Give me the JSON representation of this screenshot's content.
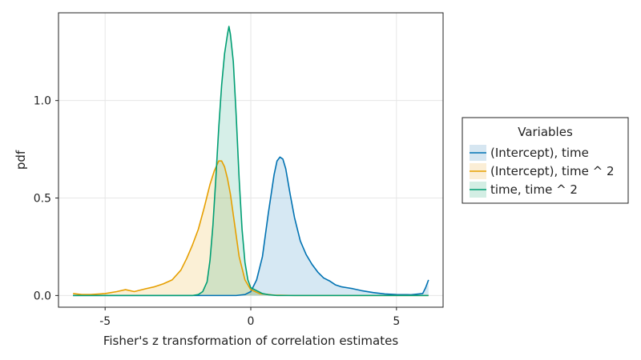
{
  "chart_data": {
    "type": "area",
    "title": "",
    "xlabel": "Fisher's z transformation of correlation estimates",
    "ylabel": "pdf",
    "xlim": [
      -6.6,
      6.6
    ],
    "ylim": [
      -0.06,
      1.45
    ],
    "x_ticks": [
      -5,
      0,
      5
    ],
    "x_tick_labels": [
      "-5",
      "0",
      "5"
    ],
    "y_ticks": [
      0.0,
      0.5,
      1.0
    ],
    "y_tick_labels": [
      "0.0",
      "0.5",
      "1.0"
    ],
    "grid": true,
    "legend": {
      "title": "Variables",
      "placement": "right"
    },
    "series": [
      {
        "name": "(Intercept), time",
        "color": "#0072b2",
        "fill": "#d6e6f1",
        "x": [
          -6.1,
          -2.0,
          -0.5,
          -0.2,
          0.0,
          0.2,
          0.4,
          0.6,
          0.8,
          0.9,
          1.0,
          1.1,
          1.2,
          1.35,
          1.5,
          1.7,
          1.9,
          2.1,
          2.3,
          2.5,
          2.7,
          2.9,
          3.1,
          3.3,
          3.5,
          3.8,
          4.2,
          4.6,
          5.0,
          5.5,
          5.9,
          6.0,
          6.1
        ],
        "y": [
          0.0,
          0.0,
          0.0,
          0.005,
          0.02,
          0.08,
          0.2,
          0.42,
          0.62,
          0.69,
          0.71,
          0.7,
          0.65,
          0.52,
          0.4,
          0.28,
          0.21,
          0.16,
          0.12,
          0.09,
          0.075,
          0.055,
          0.045,
          0.04,
          0.035,
          0.025,
          0.015,
          0.008,
          0.005,
          0.004,
          0.01,
          0.04,
          0.08
        ]
      },
      {
        "name": "(Intercept), time ^ 2",
        "color": "#e69f00",
        "fill": "#fbeed6",
        "x": [
          -6.1,
          -5.8,
          -5.5,
          -5.0,
          -4.6,
          -4.3,
          -4.0,
          -3.6,
          -3.3,
          -3.0,
          -2.7,
          -2.4,
          -2.2,
          -2.0,
          -1.8,
          -1.6,
          -1.4,
          -1.25,
          -1.1,
          -1.0,
          -0.9,
          -0.8,
          -0.7,
          -0.55,
          -0.4,
          -0.2,
          0.0,
          0.3,
          0.8,
          1.5,
          3.0,
          6.1
        ],
        "y": [
          0.01,
          0.005,
          0.005,
          0.01,
          0.02,
          0.03,
          0.02,
          0.035,
          0.045,
          0.06,
          0.08,
          0.13,
          0.19,
          0.26,
          0.34,
          0.45,
          0.57,
          0.64,
          0.69,
          0.69,
          0.66,
          0.6,
          0.52,
          0.36,
          0.2,
          0.08,
          0.03,
          0.01,
          0.002,
          0.0,
          0.0,
          0.0
        ]
      },
      {
        "name": "time, time ^ 2",
        "color": "#009e73",
        "fill": "#d3eee4",
        "x": [
          -6.1,
          -2.0,
          -1.8,
          -1.65,
          -1.5,
          -1.4,
          -1.3,
          -1.2,
          -1.1,
          -1.0,
          -0.9,
          -0.8,
          -0.75,
          -0.7,
          -0.6,
          -0.5,
          -0.4,
          -0.3,
          -0.2,
          -0.1,
          0.0,
          0.2,
          0.4,
          0.6,
          0.9,
          1.5,
          6.1
        ],
        "y": [
          0.0,
          0.0,
          0.005,
          0.02,
          0.07,
          0.18,
          0.36,
          0.6,
          0.86,
          1.08,
          1.24,
          1.34,
          1.38,
          1.34,
          1.2,
          0.92,
          0.6,
          0.34,
          0.17,
          0.08,
          0.04,
          0.025,
          0.01,
          0.004,
          0.0,
          0.0,
          0.0
        ]
      }
    ]
  }
}
